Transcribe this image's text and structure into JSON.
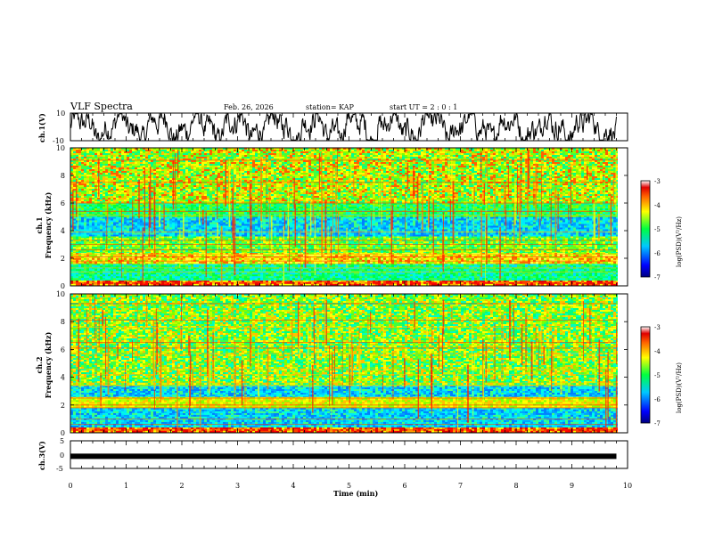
{
  "header": {
    "title": "VLF Spectra",
    "date": "Feb. 26, 2026",
    "station": "station= KAP",
    "start_time": "start  UT =  2 : 0  : 1"
  },
  "chart_data": [
    {
      "type": "line",
      "id": "ch1-waveform",
      "ylabel": "ch.1(V)",
      "ylim": [
        -10,
        10
      ],
      "y_ticks": [
        "10",
        "-10"
      ],
      "xlim": [
        0,
        10
      ],
      "description_series": "ch.1 voltage waveform, oscillating roughly between -10 and 10 V over 0–9.8 min"
    },
    {
      "type": "heatmap",
      "id": "ch1-spectrogram",
      "ylabel_line1": "ch.1",
      "ylabel_line2": "Frequency (kHz)",
      "ylim": [
        0,
        10
      ],
      "y_ticks": [
        "0",
        "2",
        "4",
        "6",
        "8",
        "10"
      ],
      "xlim": [
        0,
        9.8
      ],
      "colorbar": {
        "label": "log(PSD)(V²/Hz)",
        "range": [
          -7,
          -3
        ],
        "ticks": [
          "-3",
          "-4",
          "-5",
          "-6",
          "-7"
        ]
      },
      "bands_khz": [
        {
          "from": 0,
          "to": 0.4,
          "level": "red"
        },
        {
          "from": 0.4,
          "to": 1.6,
          "level": "green-cyan"
        },
        {
          "from": 1.6,
          "to": 2.4,
          "level": "yellow-red lines"
        },
        {
          "from": 2.4,
          "to": 3.6,
          "level": "green-yellow"
        },
        {
          "from": 3.6,
          "to": 5.0,
          "level": "cyan-blue"
        },
        {
          "from": 5.0,
          "to": 6.0,
          "level": "green"
        },
        {
          "from": 6.0,
          "to": 10,
          "level": "yellow-red bursts"
        }
      ]
    },
    {
      "type": "heatmap",
      "id": "ch2-spectrogram",
      "ylabel_line1": "ch.2",
      "ylabel_line2": "Frequency (kHz)",
      "ylim": [
        0,
        10
      ],
      "y_ticks": [
        "0",
        "2",
        "4",
        "6",
        "8",
        "10"
      ],
      "xlim": [
        0,
        9.8
      ],
      "colorbar": {
        "label": "log(PSD)(V²/Hz)",
        "range": [
          -7,
          -3
        ],
        "ticks": [
          "-3",
          "-4",
          "-5",
          "-6",
          "-7"
        ]
      },
      "bands_khz": [
        {
          "from": 0,
          "to": 0.4,
          "level": "red"
        },
        {
          "from": 0.4,
          "to": 1.8,
          "level": "cyan-blue"
        },
        {
          "from": 1.8,
          "to": 2.6,
          "level": "yellow lines"
        },
        {
          "from": 2.6,
          "to": 3.4,
          "level": "cyan-blue"
        },
        {
          "from": 3.4,
          "to": 10,
          "level": "green-yellow with red bursts"
        }
      ]
    },
    {
      "type": "line",
      "id": "ch3-trace",
      "ylabel": "ch.3(V)",
      "ylim": [
        -5,
        5
      ],
      "y_ticks": [
        "5",
        "0",
        "-5"
      ],
      "xlim": [
        0,
        10
      ],
      "x": [
        0,
        9.8
      ],
      "y": [
        -0.6,
        -0.6
      ]
    }
  ],
  "x_axis": {
    "label": "Time  (min)",
    "ticks": [
      "0",
      "1",
      "2",
      "3",
      "4",
      "5",
      "6",
      "7",
      "8",
      "9",
      "10"
    ],
    "range": [
      0,
      10
    ]
  }
}
